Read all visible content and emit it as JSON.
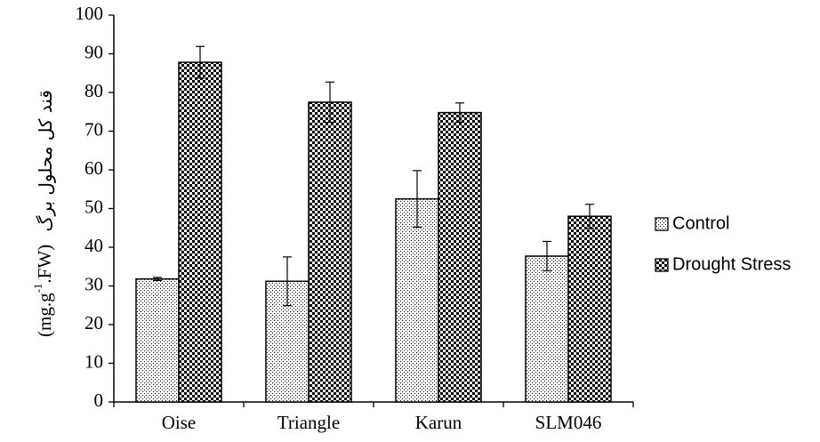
{
  "chart_data": {
    "type": "bar",
    "title": "",
    "xlabel": "",
    "ylabel": "قند کل محلول برگ (mg.g-1.FW)",
    "ylabel_persian": "قند کل محلول برگ",
    "ylabel_unit_pre": "(mg.g",
    "ylabel_unit_sup": "-1",
    "ylabel_unit_post": ".FW)",
    "categories": [
      "Oise",
      "Triangle",
      "Karun",
      "SLM046"
    ],
    "ylim": [
      0,
      100
    ],
    "yticks": [
      0,
      10,
      20,
      30,
      40,
      50,
      60,
      70,
      80,
      90,
      100
    ],
    "grid": false,
    "legend_position": "right",
    "series": [
      {
        "name": "Control",
        "pattern": "dots",
        "values": [
          31.8,
          31.2,
          52.5,
          37.7
        ],
        "errors": [
          0.4,
          6.3,
          7.3,
          3.8
        ]
      },
      {
        "name": "Drought Stress",
        "pattern": "checker",
        "values": [
          87.8,
          77.5,
          74.8,
          48.0
        ],
        "errors": [
          4.1,
          5.2,
          2.5,
          3.1
        ]
      }
    ]
  }
}
